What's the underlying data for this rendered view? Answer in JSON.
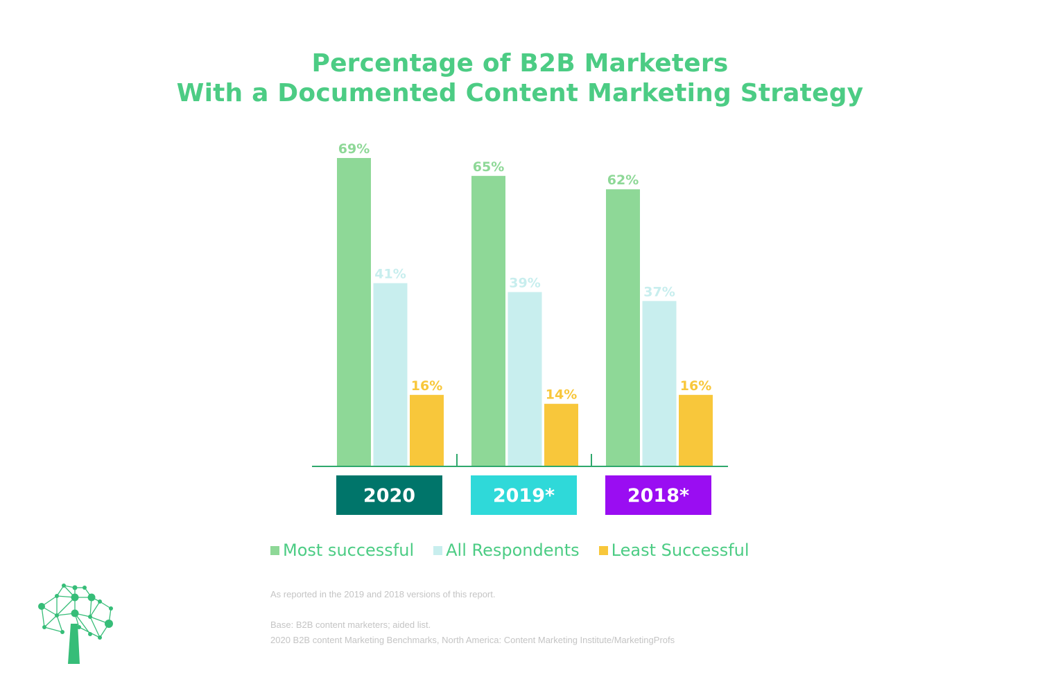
{
  "colors": {
    "title": "#4ccc84",
    "most_successful": "#8ed897",
    "all_respondents": "#c8eeee",
    "least_successful": "#f8c73b",
    "axis": "#2ea86c",
    "year_2020": "#00756a",
    "year_2019": "#2fd9d9",
    "year_2018": "#9a0df2"
  },
  "chart_data": {
    "type": "bar",
    "title": "Percentage of B2B Marketers With a Documented Content Marketing Strategy",
    "title_lines": [
      "Percentage of B2B Marketers",
      "With a Documented Content Marketing Strategy"
    ],
    "categories": [
      "2020",
      "2019*",
      "2018*"
    ],
    "series": [
      {
        "name": "Most successful",
        "values": [
          69,
          65,
          62
        ],
        "labels": [
          "69%",
          "65%",
          "62%"
        ],
        "color": "#8ed897",
        "label_color": "#8ed897"
      },
      {
        "name": "All Respondents",
        "values": [
          41,
          39,
          37
        ],
        "labels": [
          "41%",
          "39%",
          "37%"
        ],
        "color": "#c8eeee",
        "label_color": "#c8eeee"
      },
      {
        "name": "Least Successful",
        "values": [
          16,
          14,
          16
        ],
        "labels": [
          "16%",
          "14%",
          "16%"
        ],
        "color": "#f8c73b",
        "label_color": "#f8c73b"
      }
    ],
    "category_box_colors": [
      "#00756a",
      "#2fd9d9",
      "#9a0df2"
    ],
    "ylim": [
      0,
      100
    ],
    "grid": false,
    "legend": "bottom",
    "xlabel": "",
    "ylabel": ""
  },
  "notes": {
    "line1": "As reported in the 2019 and 2018 versions of this report.",
    "line2": "Base: B2B content marketers; aided list.",
    "line3": "2020 B2B content Marketing Benchmarks, North America: Content Marketing Institute/MarketingProfs"
  },
  "logo": {
    "icon": "tree-network-logo"
  }
}
